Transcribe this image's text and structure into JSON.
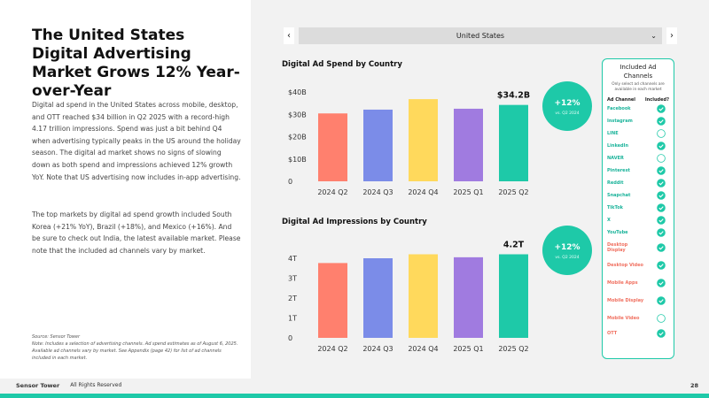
{
  "headline": "The United States Digital Advertising Market Grows 12% Year-over-Year",
  "paragraphs": [
    "Digital ad spend in the United States across mobile, desktop, and OTT reached $34 billion in Q2 2025 with a record-high 4.17 trillion impressions. Spend was just a bit behind Q4 when advertising typically peaks in the US around the holiday season. The digital ad market shows no signs of slowing down as both spend and impressions achieved 12% growth YoY. Note that US advertising now includes in-app advertising.",
    "The top markets by digital ad spend growth included South Korea (+21% YoY), Brazil (+18%), and Mexico (+16%). And be sure to check out India, the latest available market. Please note that the included ad channels vary by market."
  ],
  "source": "Source: Sensor Tower",
  "note": "Note: Includes a selection of advertising channels. Ad spend estimates as of August 6, 2025. Available ad channels vary by market. See Appendix (page 42) for list of ad channels included in each market.",
  "footer": {
    "brand": "Sensor Tower",
    "copyright": "All Rights Reserved",
    "page": "28"
  },
  "dropdown": "United States",
  "chart_data": [
    {
      "type": "bar",
      "title": "Digital Ad Spend by Country",
      "categories": [
        "2024 Q2",
        "2024 Q3",
        "2024 Q4",
        "2025 Q1",
        "2025 Q2"
      ],
      "values": [
        30.4,
        32.1,
        36.8,
        32.5,
        34.2
      ],
      "value_labels": [
        null,
        null,
        null,
        null,
        "$34.2B"
      ],
      "colors": [
        "#ff806e",
        "#7b8ce8",
        "#ffd95c",
        "#a07be0",
        "#1ec9a8"
      ],
      "ylim": [
        0,
        40
      ],
      "yticks": [
        0,
        {
          "value": 10,
          "label": "$10B"
        },
        {
          "value": 20,
          "label": "$20B"
        },
        {
          "value": 30,
          "label": "$30B"
        },
        {
          "value": 40,
          "label": "$40B"
        }
      ],
      "grid": false,
      "annotation": {
        "text": "+12%",
        "subtext": "vs. Q2 2024"
      }
    },
    {
      "type": "bar",
      "title": "Digital Ad Impressions by Country",
      "categories": [
        "2024 Q2",
        "2024 Q3",
        "2024 Q4",
        "2025 Q1",
        "2025 Q2"
      ],
      "values": [
        3.76,
        4.0,
        4.2,
        4.05,
        4.2
      ],
      "value_labels": [
        null,
        null,
        null,
        null,
        "4.2T"
      ],
      "colors": [
        "#ff806e",
        "#7b8ce8",
        "#ffd95c",
        "#a07be0",
        "#1ec9a8"
      ],
      "ylim": [
        0,
        4.4
      ],
      "yticks": [
        0,
        {
          "value": 1,
          "label": "1T"
        },
        {
          "value": 2,
          "label": "2T"
        },
        {
          "value": 3,
          "label": "3T"
        },
        {
          "value": 4,
          "label": "4T"
        }
      ],
      "grid": false,
      "annotation": {
        "text": "+12%",
        "subtext": "vs. Q2 2024"
      }
    }
  ],
  "channels": {
    "title": "Included Ad Channels",
    "subtitle": "Only select ad channels are available in each market",
    "headers": [
      "Ad Channel",
      "Included?"
    ],
    "items": [
      {
        "name": "Facebook",
        "included": true,
        "color": "#1ab39a"
      },
      {
        "name": "Instagram",
        "included": true,
        "color": "#1ab39a"
      },
      {
        "name": "LINE",
        "included": false,
        "color": "#1ab39a"
      },
      {
        "name": "LinkedIn",
        "included": true,
        "color": "#1ab39a"
      },
      {
        "name": "NAVER",
        "included": false,
        "color": "#1ab39a"
      },
      {
        "name": "Pinterest",
        "included": true,
        "color": "#1ab39a"
      },
      {
        "name": "Reddit",
        "included": true,
        "color": "#1ab39a"
      },
      {
        "name": "Snapchat",
        "included": true,
        "color": "#1ab39a"
      },
      {
        "name": "TikTok",
        "included": true,
        "color": "#1ab39a"
      },
      {
        "name": "X",
        "included": true,
        "color": "#1ab39a"
      },
      {
        "name": "YouTube",
        "included": true,
        "color": "#1ab39a"
      },
      {
        "name": "Desktop Display",
        "included": true,
        "color": "#f07060"
      },
      {
        "name": "Desktop Video",
        "included": true,
        "color": "#f07060"
      },
      {
        "name": "Mobile Apps",
        "included": true,
        "color": "#f07060"
      },
      {
        "name": "Mobile Display",
        "included": true,
        "color": "#f07060"
      },
      {
        "name": "Mobile Video",
        "included": false,
        "color": "#f07060"
      },
      {
        "name": "OTT",
        "included": true,
        "color": "#f07060"
      }
    ]
  }
}
